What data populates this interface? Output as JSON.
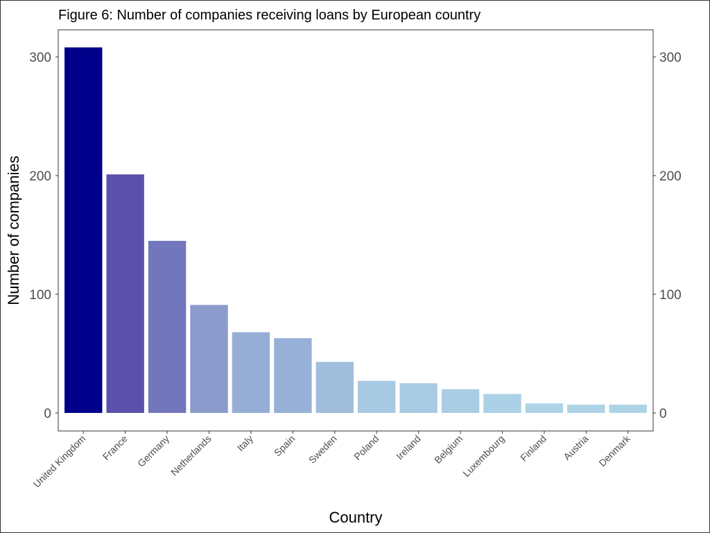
{
  "chart_data": {
    "type": "bar",
    "title": "Figure 6: Number of companies receiving loans by European country",
    "xlabel": "Country",
    "ylabel": "Number of companies",
    "ylim": [
      0,
      310
    ],
    "yticks": [
      0,
      100,
      200,
      300
    ],
    "secondary_y_axis": true,
    "grid": false,
    "categories": [
      "United Kingdom",
      "France",
      "Germany",
      "Netherlands",
      "Italy",
      "Spain",
      "Sweden",
      "Poland",
      "Ireland",
      "Belgium",
      "Luxembourg",
      "Finland",
      "Austria",
      "Denmark"
    ],
    "values": [
      308,
      201,
      145,
      91,
      68,
      63,
      43,
      27,
      25,
      20,
      16,
      8,
      7,
      7
    ],
    "colors": [
      "#00008B",
      "#5B50AA",
      "#7276BD",
      "#8A9BCC",
      "#96AED6",
      "#97B0D8",
      "#A0BEDC",
      "#A7C9E2",
      "#A8CAE2",
      "#AACDE4",
      "#ACD0E5",
      "#AED3E6",
      "#AED3E7",
      "#AED3E7"
    ]
  }
}
